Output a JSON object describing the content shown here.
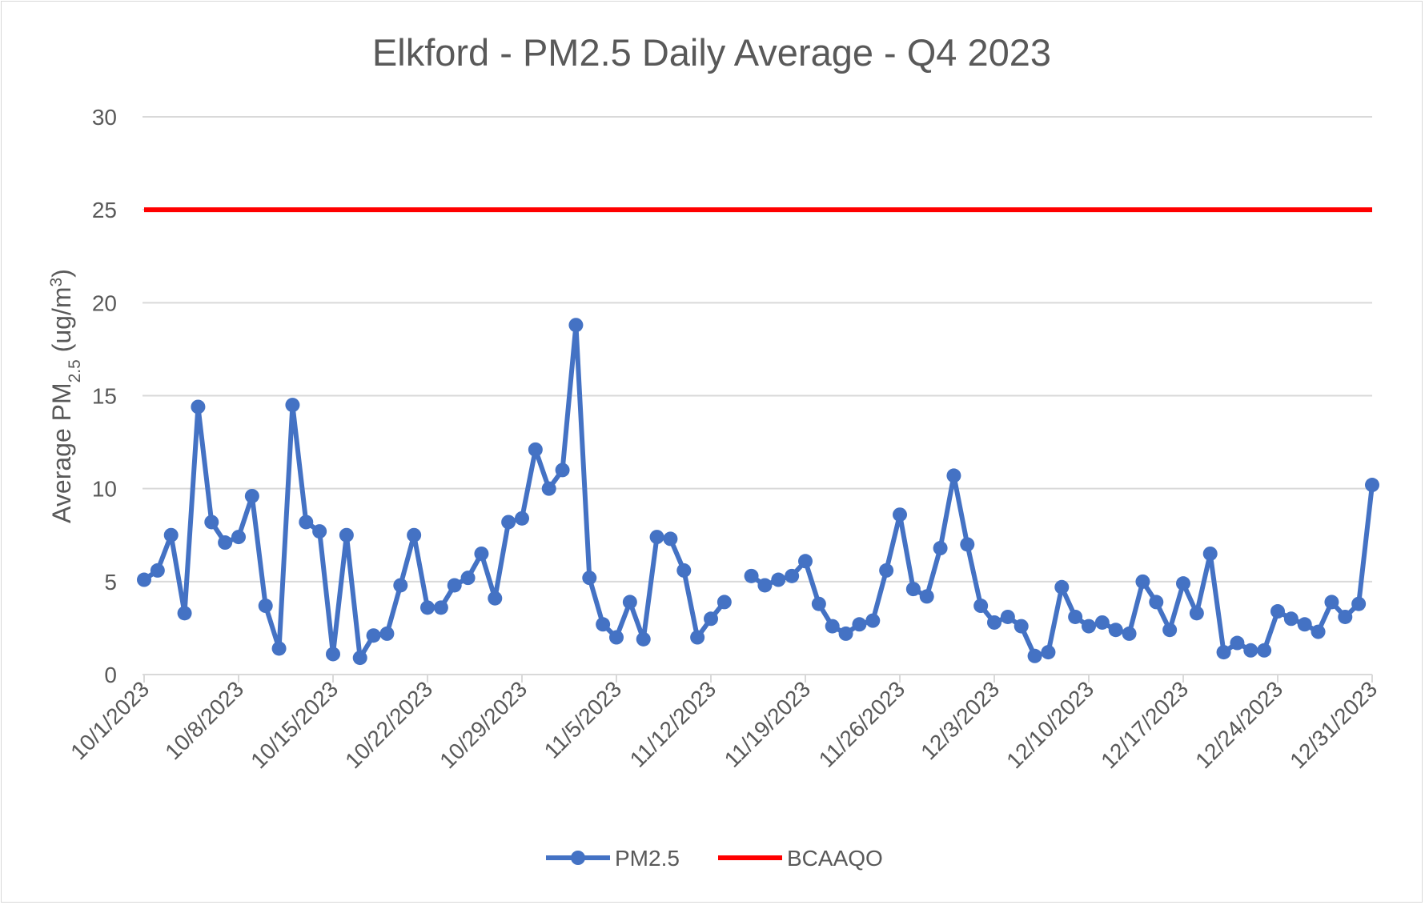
{
  "chart_data": {
    "type": "line",
    "title": "Elkford - PM2.5 Daily Average - Q4 2023",
    "ylabel": {
      "prefix": "Average PM",
      "subscript": "2.5",
      "unit_prefix": " (ug/m",
      "superscript": "3",
      "unit_suffix": ")"
    },
    "ylim": [
      0,
      30
    ],
    "yticks": [
      0,
      5,
      10,
      15,
      20,
      25,
      30
    ],
    "xlim": [
      "2023-10-01",
      "2023-12-31"
    ],
    "xtick_labels": [
      "10/1/2023",
      "10/8/2023",
      "10/15/2023",
      "10/22/2023",
      "10/29/2023",
      "11/5/2023",
      "11/12/2023",
      "11/19/2023",
      "11/26/2023",
      "12/3/2023",
      "12/10/2023",
      "12/17/2023",
      "12/24/2023",
      "12/31/2023"
    ],
    "grid": true,
    "legend_position": "bottom",
    "series": [
      {
        "name": "PM2.5",
        "color": "#4472c4",
        "marker": "circle",
        "start_date": "2023-10-01",
        "values": [
          5.1,
          5.6,
          7.5,
          3.3,
          14.4,
          8.2,
          7.1,
          7.4,
          9.6,
          3.7,
          1.4,
          14.5,
          8.2,
          7.7,
          1.1,
          7.5,
          0.9,
          2.1,
          2.2,
          4.8,
          7.5,
          3.6,
          3.6,
          4.8,
          5.2,
          6.5,
          4.1,
          8.2,
          8.4,
          12.1,
          10.0,
          11.0,
          18.8,
          5.2,
          2.7,
          2.0,
          3.9,
          1.9,
          7.4,
          7.3,
          5.6,
          2.0,
          3.0,
          3.9,
          null,
          5.3,
          4.8,
          5.1,
          5.3,
          6.1,
          3.8,
          2.6,
          2.2,
          2.7,
          2.9,
          5.6,
          8.6,
          4.6,
          4.2,
          6.8,
          10.7,
          7.0,
          3.7,
          2.8,
          3.1,
          2.6,
          1.0,
          1.2,
          4.7,
          3.1,
          2.6,
          2.8,
          2.4,
          2.2,
          5.0,
          3.9,
          2.4,
          4.9,
          3.3,
          6.5,
          1.2,
          1.7,
          1.3,
          1.3,
          3.4,
          3.0,
          2.7,
          2.3,
          3.9,
          3.1,
          3.8,
          10.2
        ]
      },
      {
        "name": "BCAAQO",
        "color": "#ff0000",
        "marker": "none",
        "x": [
          "2023-10-01",
          "2023-12-31"
        ],
        "values": [
          25,
          25
        ]
      }
    ]
  }
}
